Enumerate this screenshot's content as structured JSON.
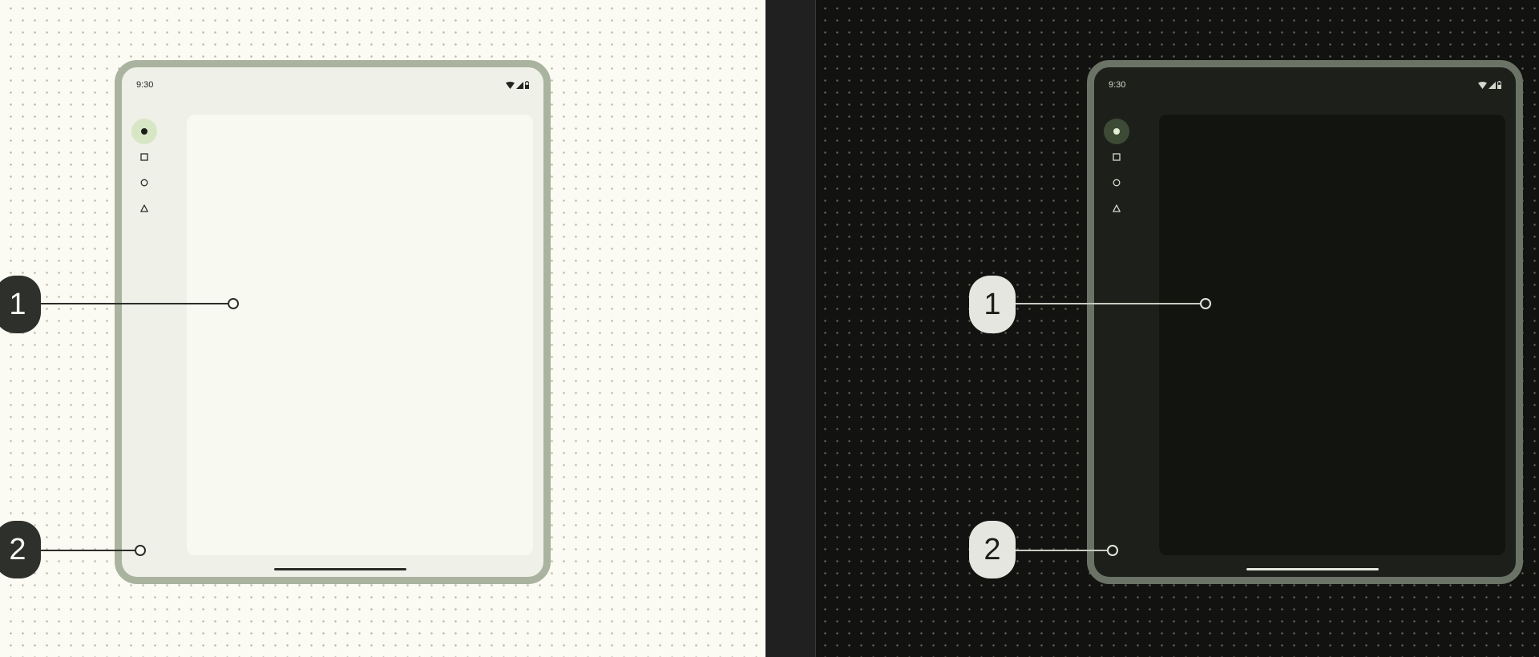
{
  "themes": {
    "light": {
      "status_time": "9:30",
      "colors": {
        "frame": "#a9b3a0",
        "surface": "#eff0e8",
        "pane": "#f8f9f1",
        "active_indicator": "#d7e7c6"
      }
    },
    "dark": {
      "status_time": "9:30",
      "colors": {
        "frame": "#6b7266",
        "surface": "#1d1f1b",
        "pane": "#121410",
        "active_indicator": "#3d4b36"
      }
    }
  },
  "navigation_rail": {
    "items": [
      {
        "icon": "filled-circle-icon",
        "active": true
      },
      {
        "icon": "square-icon",
        "active": false
      },
      {
        "icon": "circle-icon",
        "active": false
      },
      {
        "icon": "triangle-icon",
        "active": false
      }
    ]
  },
  "status_icons": [
    "wifi-icon",
    "signal-icon",
    "battery-icon"
  ],
  "callouts": [
    {
      "number": "1",
      "target": "content-pane"
    },
    {
      "number": "2",
      "target": "window-surface"
    }
  ]
}
